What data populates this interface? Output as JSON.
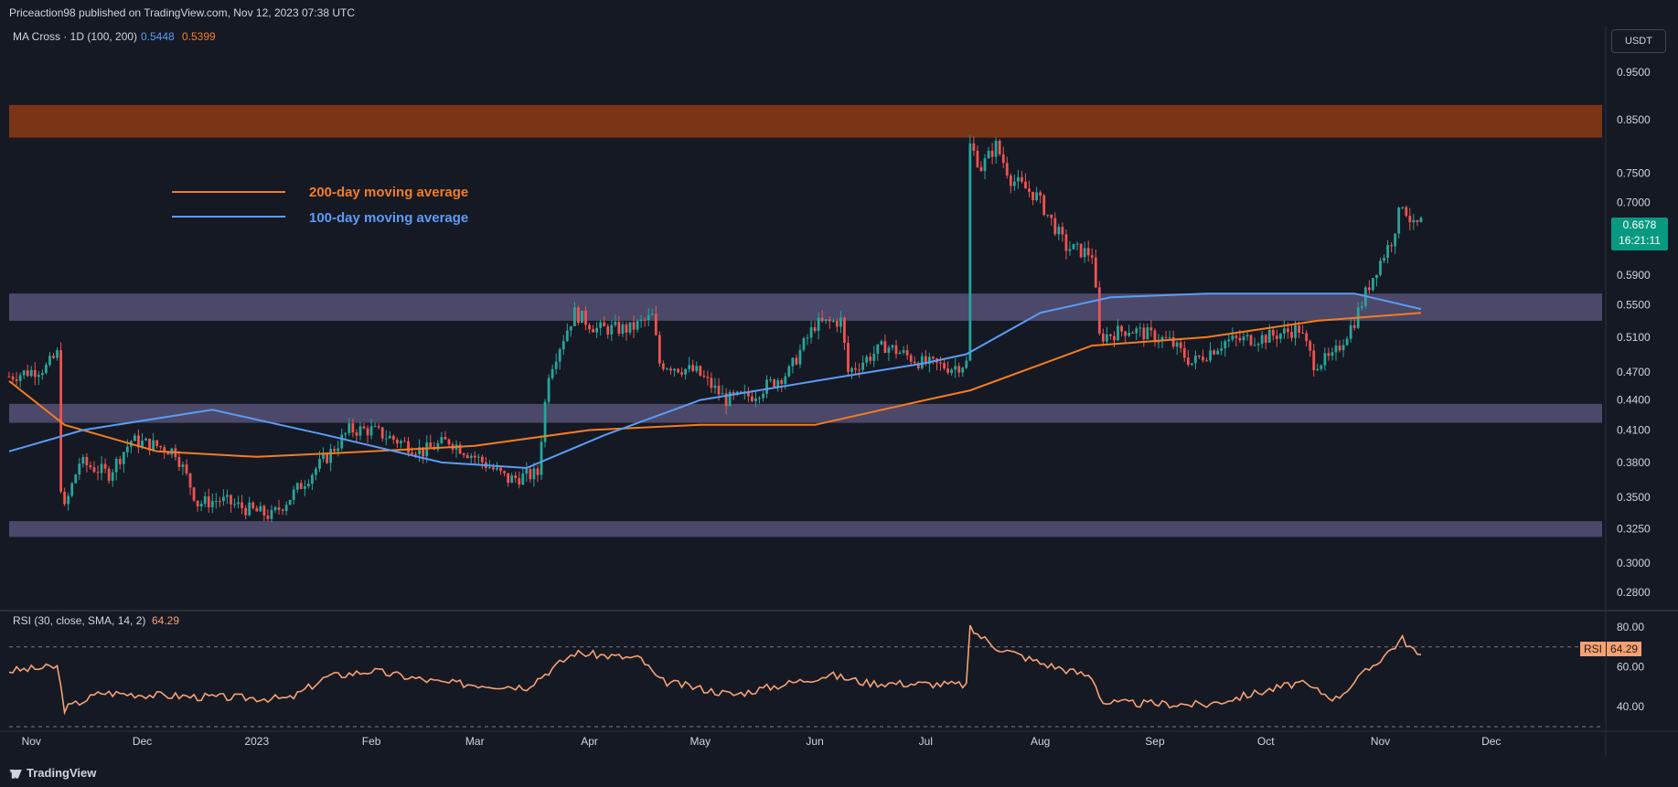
{
  "header": {
    "publisher": "Priceaction98 published on TradingView.com, Nov 12, 2023 07:38 UTC"
  },
  "indicator": {
    "label": "MA Cross · 1D (100, 200)",
    "ma100": "0.5448",
    "ma200": "0.5399"
  },
  "currency": "USDT",
  "last_price": {
    "value": "0.6678",
    "countdown": "16:21:11"
  },
  "legend": {
    "ma200_label": "200-day moving average",
    "ma100_label": "100-day moving average"
  },
  "rsi": {
    "label": "RSI (30, close, SMA, 14, 2)",
    "value": "64.29",
    "tag": "RSI"
  },
  "footer": {
    "brand": "TradingView"
  },
  "colors": {
    "background": "#151924",
    "up": "#26a69a",
    "down": "#ef5350",
    "ma100": "#5b9cf6",
    "ma200": "#f57c20",
    "rsi": "#f7a172",
    "resistance_zone": "#7a3516",
    "support_zone": "#4b4869"
  },
  "chart_data": {
    "type": "candlestick",
    "timeframe": "1D",
    "ylim": [
      0.27,
      0.99
    ],
    "y_ticks": [
      0.95,
      0.85,
      0.75,
      0.7,
      0.59,
      0.55,
      0.51,
      0.47,
      0.44,
      0.41,
      0.38,
      0.35,
      0.325,
      0.3,
      0.28
    ],
    "y_tick_labels": [
      "0.9500",
      "0.8500",
      "0.7500",
      "0.7000",
      "0.5900",
      "0.5500",
      "0.5100",
      "0.4700",
      "0.4400",
      "0.4100",
      "0.3800",
      "0.3500",
      "0.3250",
      "0.3000",
      "0.2800"
    ],
    "x_labels": [
      "Nov",
      "Dec",
      "2023",
      "Feb",
      "Mar",
      "Apr",
      "May",
      "Jun",
      "Jul",
      "Aug",
      "Sep",
      "Oct",
      "Nov",
      "Dec"
    ],
    "start_date": "2022-10-26",
    "end_date": "2023-12-31",
    "zones": [
      {
        "name": "resistance",
        "low": 0.815,
        "high": 0.88
      },
      {
        "name": "support-upper",
        "low": 0.53,
        "high": 0.565
      },
      {
        "name": "support-middle",
        "low": 0.417,
        "high": 0.436
      },
      {
        "name": "support-lower",
        "low": 0.319,
        "high": 0.331
      }
    ],
    "price_path": [
      [
        "2022-10-26",
        0.465
      ],
      [
        "2022-11-05",
        0.475
      ],
      [
        "2022-11-08",
        0.49
      ],
      [
        "2022-11-09",
        0.36
      ],
      [
        "2022-11-10",
        0.34
      ],
      [
        "2022-11-14",
        0.38
      ],
      [
        "2022-11-22",
        0.37
      ],
      [
        "2022-11-28",
        0.4
      ],
      [
        "2022-12-05",
        0.395
      ],
      [
        "2022-12-10",
        0.39
      ],
      [
        "2022-12-16",
        0.345
      ],
      [
        "2022-12-22",
        0.348
      ],
      [
        "2022-12-30",
        0.34
      ],
      [
        "2023-01-05",
        0.335
      ],
      [
        "2023-01-10",
        0.35
      ],
      [
        "2023-01-20",
        0.385
      ],
      [
        "2023-01-26",
        0.41
      ],
      [
        "2023-02-01",
        0.41
      ],
      [
        "2023-02-08",
        0.4
      ],
      [
        "2023-02-15",
        0.39
      ],
      [
        "2023-02-22",
        0.4
      ],
      [
        "2023-03-01",
        0.385
      ],
      [
        "2023-03-10",
        0.365
      ],
      [
        "2023-03-18",
        0.37
      ],
      [
        "2023-03-21",
        0.47
      ],
      [
        "2023-03-28",
        0.54
      ],
      [
        "2023-04-03",
        0.52
      ],
      [
        "2023-04-12",
        0.52
      ],
      [
        "2023-04-18",
        0.535
      ],
      [
        "2023-04-20",
        0.48
      ],
      [
        "2023-04-30",
        0.47
      ],
      [
        "2023-05-08",
        0.44
      ],
      [
        "2023-05-15",
        0.445
      ],
      [
        "2023-05-25",
        0.47
      ],
      [
        "2023-06-01",
        0.525
      ],
      [
        "2023-06-08",
        0.53
      ],
      [
        "2023-06-10",
        0.47
      ],
      [
        "2023-06-20",
        0.5
      ],
      [
        "2023-06-30",
        0.48
      ],
      [
        "2023-07-08",
        0.475
      ],
      [
        "2023-07-12",
        0.48
      ],
      [
        "2023-07-13",
        0.8
      ],
      [
        "2023-07-16",
        0.76
      ],
      [
        "2023-07-20",
        0.8
      ],
      [
        "2023-07-24",
        0.74
      ],
      [
        "2023-07-31",
        0.71
      ],
      [
        "2023-08-08",
        0.63
      ],
      [
        "2023-08-15",
        0.62
      ],
      [
        "2023-08-17",
        0.51
      ],
      [
        "2023-08-25",
        0.52
      ],
      [
        "2023-09-05",
        0.505
      ],
      [
        "2023-09-11",
        0.48
      ],
      [
        "2023-09-20",
        0.505
      ],
      [
        "2023-10-01",
        0.51
      ],
      [
        "2023-10-10",
        0.52
      ],
      [
        "2023-10-14",
        0.48
      ],
      [
        "2023-10-19",
        0.485
      ],
      [
        "2023-10-25",
        0.53
      ],
      [
        "2023-10-31",
        0.6
      ],
      [
        "2023-11-04",
        0.64
      ],
      [
        "2023-11-07",
        0.7
      ],
      [
        "2023-11-10",
        0.66
      ],
      [
        "2023-11-12",
        0.6678
      ]
    ],
    "series": [
      {
        "name": "200-day moving average",
        "points": [
          [
            "2022-10-26",
            0.46
          ],
          [
            "2022-11-10",
            0.415
          ],
          [
            "2022-12-05",
            0.39
          ],
          [
            "2023-01-01",
            0.385
          ],
          [
            "2023-02-01",
            0.39
          ],
          [
            "2023-03-01",
            0.395
          ],
          [
            "2023-04-01",
            0.41
          ],
          [
            "2023-05-01",
            0.415
          ],
          [
            "2023-06-01",
            0.415
          ],
          [
            "2023-07-01",
            0.44
          ],
          [
            "2023-07-13",
            0.45
          ],
          [
            "2023-08-15",
            0.5
          ],
          [
            "2023-09-15",
            0.51
          ],
          [
            "2023-10-15",
            0.53
          ],
          [
            "2023-11-12",
            0.5399
          ]
        ]
      },
      {
        "name": "100-day moving average",
        "points": [
          [
            "2022-10-26",
            0.39
          ],
          [
            "2022-11-15",
            0.41
          ],
          [
            "2022-12-20",
            0.43
          ],
          [
            "2023-01-20",
            0.405
          ],
          [
            "2023-02-20",
            0.38
          ],
          [
            "2023-03-15",
            0.375
          ],
          [
            "2023-04-05",
            0.405
          ],
          [
            "2023-05-01",
            0.44
          ],
          [
            "2023-06-01",
            0.46
          ],
          [
            "2023-07-01",
            0.48
          ],
          [
            "2023-07-12",
            0.49
          ],
          [
            "2023-08-01",
            0.54
          ],
          [
            "2023-08-20",
            0.56
          ],
          [
            "2023-09-15",
            0.565
          ],
          [
            "2023-10-25",
            0.565
          ],
          [
            "2023-11-12",
            0.5448
          ]
        ]
      }
    ],
    "rsi_panel": {
      "ylim": [
        30,
        85
      ],
      "y_ticks": [
        80,
        60,
        40
      ],
      "y_tick_labels": [
        "80.00",
        "60.00",
        "40.00"
      ],
      "bands": [
        70,
        30
      ],
      "points": [
        [
          "2022-10-26",
          58
        ],
        [
          "2022-11-08",
          60
        ],
        [
          "2022-11-10",
          39
        ],
        [
          "2022-11-20",
          47
        ],
        [
          "2022-12-15",
          45
        ],
        [
          "2023-01-10",
          44
        ],
        [
          "2023-01-20",
          55
        ],
        [
          "2023-02-01",
          58
        ],
        [
          "2023-02-20",
          52
        ],
        [
          "2023-03-15",
          50
        ],
        [
          "2023-03-28",
          67
        ],
        [
          "2023-04-15",
          64
        ],
        [
          "2023-04-20",
          53
        ],
        [
          "2023-05-10",
          46
        ],
        [
          "2023-06-05",
          56
        ],
        [
          "2023-06-15",
          52
        ],
        [
          "2023-07-12",
          51
        ],
        [
          "2023-07-13",
          79
        ],
        [
          "2023-07-20",
          70
        ],
        [
          "2023-08-01",
          62
        ],
        [
          "2023-08-15",
          55
        ],
        [
          "2023-08-18",
          42
        ],
        [
          "2023-09-15",
          41
        ],
        [
          "2023-10-10",
          52
        ],
        [
          "2023-10-20",
          44
        ],
        [
          "2023-11-01",
          64
        ],
        [
          "2023-11-07",
          74
        ],
        [
          "2023-11-12",
          64.29
        ]
      ]
    }
  }
}
